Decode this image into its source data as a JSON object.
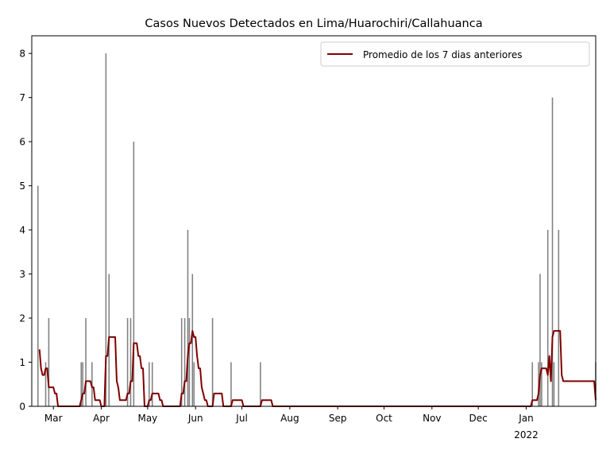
{
  "chart_data": {
    "type": "bar",
    "title": "Casos Nuevos Detectados en Lima/Huarochiri/Callahuanca",
    "xlabel": "",
    "ylabel": "",
    "ylim": [
      0,
      8.4
    ],
    "yticks": [
      0,
      1,
      2,
      3,
      4,
      5,
      6,
      7,
      8
    ],
    "xlim": [
      "2021-02-15",
      "2022-02-15"
    ],
    "xticks": [
      {
        "date": "2021-03-01",
        "label": "Mar"
      },
      {
        "date": "2021-04-01",
        "label": "Apr"
      },
      {
        "date": "2021-05-01",
        "label": "May"
      },
      {
        "date": "2021-06-01",
        "label": "Jun"
      },
      {
        "date": "2021-07-01",
        "label": "Jul"
      },
      {
        "date": "2021-08-01",
        "label": "Aug"
      },
      {
        "date": "2021-09-01",
        "label": "Sep"
      },
      {
        "date": "2021-10-01",
        "label": "Oct"
      },
      {
        "date": "2021-11-01",
        "label": "Nov"
      },
      {
        "date": "2021-12-01",
        "label": "Dec"
      },
      {
        "date": "2022-01-01",
        "label": "Jan",
        "sublabel": "2022"
      }
    ],
    "grid": false,
    "legend": {
      "position": "top-right",
      "label": "Promedio de los 7 dias anteriores"
    },
    "colors": {
      "bars": "#808080",
      "line": "#800000"
    },
    "series": [
      {
        "kind": "bar",
        "points": [
          [
            "2021-02-19",
            5
          ],
          [
            "2021-02-24",
            1
          ],
          [
            "2021-02-26",
            2
          ],
          [
            "2021-03-19",
            1
          ],
          [
            "2021-03-20",
            1
          ],
          [
            "2021-03-22",
            2
          ],
          [
            "2021-03-26",
            1
          ],
          [
            "2021-04-04",
            8
          ],
          [
            "2021-04-06",
            3
          ],
          [
            "2021-04-18",
            2
          ],
          [
            "2021-04-20",
            2
          ],
          [
            "2021-04-22",
            6
          ],
          [
            "2021-05-02",
            1
          ],
          [
            "2021-05-04",
            1
          ],
          [
            "2021-05-23",
            2
          ],
          [
            "2021-05-25",
            2
          ],
          [
            "2021-05-27",
            4
          ],
          [
            "2021-05-28",
            2
          ],
          [
            "2021-05-30",
            3
          ],
          [
            "2021-05-31",
            1
          ],
          [
            "2021-06-12",
            2
          ],
          [
            "2021-06-24",
            1
          ],
          [
            "2021-07-13",
            1
          ],
          [
            "2022-01-05",
            1
          ],
          [
            "2022-01-09",
            1
          ],
          [
            "2022-01-10",
            3
          ],
          [
            "2022-01-11",
            1
          ],
          [
            "2022-01-15",
            4
          ],
          [
            "2022-01-18",
            7
          ],
          [
            "2022-01-19",
            1
          ],
          [
            "2022-01-22",
            4
          ],
          [
            "2022-02-15",
            1
          ]
        ]
      },
      {
        "kind": "line",
        "name": "Promedio de los 7 dias anteriores",
        "points": [
          [
            "2021-02-20",
            1.29
          ],
          [
            "2021-02-21",
            0.86
          ],
          [
            "2021-02-22",
            0.71
          ],
          [
            "2021-02-23",
            0.71
          ],
          [
            "2021-02-24",
            0.86
          ],
          [
            "2021-02-25",
            0.86
          ],
          [
            "2021-02-26",
            0.43
          ],
          [
            "2021-03-01",
            0.43
          ],
          [
            "2021-03-02",
            0.29
          ],
          [
            "2021-03-03",
            0.29
          ],
          [
            "2021-03-04",
            0
          ],
          [
            "2021-03-18",
            0
          ],
          [
            "2021-03-19",
            0.14
          ],
          [
            "2021-03-20",
            0.29
          ],
          [
            "2021-03-21",
            0.29
          ],
          [
            "2021-03-22",
            0.57
          ],
          [
            "2021-03-25",
            0.57
          ],
          [
            "2021-03-26",
            0.43
          ],
          [
            "2021-03-27",
            0.43
          ],
          [
            "2021-03-28",
            0.14
          ],
          [
            "2021-03-31",
            0.14
          ],
          [
            "2021-04-01",
            0
          ],
          [
            "2021-04-03",
            0
          ],
          [
            "2021-04-04",
            1.14
          ],
          [
            "2021-04-05",
            1.14
          ],
          [
            "2021-04-06",
            1.57
          ],
          [
            "2021-04-10",
            1.57
          ],
          [
            "2021-04-11",
            0.57
          ],
          [
            "2021-04-12",
            0.43
          ],
          [
            "2021-04-13",
            0.14
          ],
          [
            "2021-04-17",
            0.14
          ],
          [
            "2021-04-18",
            0.29
          ],
          [
            "2021-04-19",
            0.29
          ],
          [
            "2021-04-20",
            0.57
          ],
          [
            "2021-04-21",
            0.57
          ],
          [
            "2021-04-22",
            1.43
          ],
          [
            "2021-04-24",
            1.43
          ],
          [
            "2021-04-25",
            1.14
          ],
          [
            "2021-04-26",
            1.14
          ],
          [
            "2021-04-27",
            0.86
          ],
          [
            "2021-04-28",
            0.86
          ],
          [
            "2021-04-29",
            0
          ],
          [
            "2021-05-01",
            0
          ],
          [
            "2021-05-02",
            0.14
          ],
          [
            "2021-05-03",
            0.14
          ],
          [
            "2021-05-04",
            0.29
          ],
          [
            "2021-05-08",
            0.29
          ],
          [
            "2021-05-09",
            0.14
          ],
          [
            "2021-05-10",
            0.14
          ],
          [
            "2021-05-11",
            0
          ],
          [
            "2021-05-22",
            0
          ],
          [
            "2021-05-23",
            0.29
          ],
          [
            "2021-05-24",
            0.29
          ],
          [
            "2021-05-25",
            0.57
          ],
          [
            "2021-05-26",
            0.57
          ],
          [
            "2021-05-27",
            1.14
          ],
          [
            "2021-05-28",
            1.43
          ],
          [
            "2021-05-29",
            1.43
          ],
          [
            "2021-05-30",
            1.71
          ],
          [
            "2021-05-31",
            1.57
          ],
          [
            "2021-06-01",
            1.57
          ],
          [
            "2021-06-02",
            1.14
          ],
          [
            "2021-06-03",
            0.86
          ],
          [
            "2021-06-04",
            0.86
          ],
          [
            "2021-06-05",
            0.43
          ],
          [
            "2021-06-06",
            0.29
          ],
          [
            "2021-06-07",
            0.14
          ],
          [
            "2021-06-08",
            0.14
          ],
          [
            "2021-06-09",
            0
          ],
          [
            "2021-06-12",
            0
          ],
          [
            "2021-06-13",
            0.29
          ],
          [
            "2021-06-18",
            0.29
          ],
          [
            "2021-06-19",
            0
          ],
          [
            "2021-06-24",
            0
          ],
          [
            "2021-06-25",
            0.14
          ],
          [
            "2021-07-01",
            0.14
          ],
          [
            "2021-07-02",
            0
          ],
          [
            "2021-07-13",
            0
          ],
          [
            "2021-07-14",
            0.14
          ],
          [
            "2021-07-20",
            0.14
          ],
          [
            "2021-07-21",
            0
          ],
          [
            "2022-01-04",
            0
          ],
          [
            "2022-01-05",
            0.14
          ],
          [
            "2022-01-08",
            0.14
          ],
          [
            "2022-01-09",
            0.29
          ],
          [
            "2022-01-10",
            0.71
          ],
          [
            "2022-01-11",
            0.86
          ],
          [
            "2022-01-14",
            0.86
          ],
          [
            "2022-01-15",
            0.71
          ],
          [
            "2022-01-16",
            1.14
          ],
          [
            "2022-01-17",
            0.57
          ],
          [
            "2022-01-18",
            1.57
          ],
          [
            "2022-01-19",
            1.71
          ],
          [
            "2022-01-23",
            1.71
          ],
          [
            "2022-01-24",
            0.71
          ],
          [
            "2022-01-25",
            0.57
          ],
          [
            "2022-01-26",
            0.57
          ],
          [
            "2022-01-27",
            0.57
          ],
          [
            "2022-02-14",
            0.57
          ],
          [
            "2022-02-15",
            0.14
          ]
        ]
      }
    ]
  }
}
